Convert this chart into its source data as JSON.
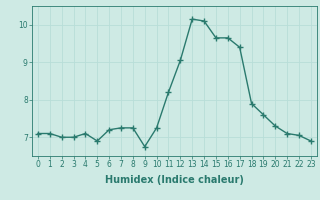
{
  "x": [
    0,
    1,
    2,
    3,
    4,
    5,
    6,
    7,
    8,
    9,
    10,
    11,
    12,
    13,
    14,
    15,
    16,
    17,
    18,
    19,
    20,
    21,
    22,
    23
  ],
  "y": [
    7.1,
    7.1,
    7.0,
    7.0,
    7.1,
    6.9,
    7.2,
    7.25,
    7.25,
    6.75,
    7.25,
    8.2,
    9.05,
    10.15,
    10.1,
    9.65,
    9.65,
    9.4,
    7.9,
    7.6,
    7.3,
    7.1,
    7.05,
    6.9
  ],
  "line_color": "#2a7a6e",
  "marker": "+",
  "marker_size": 4,
  "linewidth": 1.0,
  "xlabel": "Humidex (Indice chaleur)",
  "xlabel_fontsize": 7,
  "xlim": [
    -0.5,
    23.5
  ],
  "ylim": [
    6.5,
    10.5
  ],
  "yticks": [
    7,
    8,
    9,
    10
  ],
  "xticks": [
    0,
    1,
    2,
    3,
    4,
    5,
    6,
    7,
    8,
    9,
    10,
    11,
    12,
    13,
    14,
    15,
    16,
    17,
    18,
    19,
    20,
    21,
    22,
    23
  ],
  "grid_color": "#b8ddd8",
  "bg_color": "#ceeae4",
  "tick_fontsize": 5.5,
  "marker_edge_width": 1.0
}
